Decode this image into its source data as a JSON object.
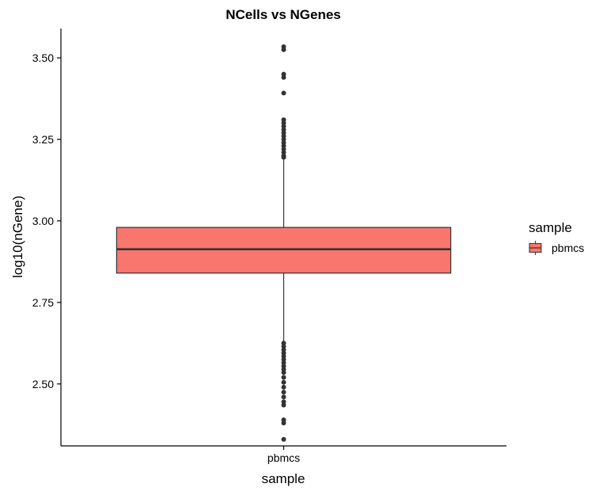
{
  "chart_data": {
    "type": "box",
    "title": "NCells vs NGenes",
    "xlabel": "sample",
    "ylabel": "log10(nGene)",
    "categories": [
      "pbmcs"
    ],
    "ylim": [
      2.31,
      3.59
    ],
    "yticks": [
      2.5,
      2.75,
      3.0,
      3.25,
      3.5
    ],
    "ytick_labels": [
      "2.50",
      "2.75",
      "3.00",
      "3.25",
      "3.50"
    ],
    "grid": false,
    "legend": {
      "title": "sample",
      "entries": [
        "pbmcs"
      ],
      "placement": "right"
    },
    "series": [
      {
        "name": "pbmcs",
        "color": "#F8766D",
        "box": {
          "q1": 2.84,
          "median": 2.913,
          "q3": 2.98,
          "whisker_low": 2.63,
          "whisker_high": 3.19
        },
        "outliers": [
          3.534,
          3.525,
          3.45,
          3.44,
          3.392,
          3.31,
          3.3,
          3.29,
          3.28,
          3.27,
          3.26,
          3.25,
          3.24,
          3.23,
          3.22,
          3.21,
          3.2,
          3.195,
          2.625,
          2.615,
          2.605,
          2.595,
          2.585,
          2.575,
          2.565,
          2.555,
          2.545,
          2.535,
          2.52,
          2.505,
          2.49,
          2.475,
          2.46,
          2.445,
          2.435,
          2.39,
          2.38,
          2.33
        ]
      }
    ]
  }
}
